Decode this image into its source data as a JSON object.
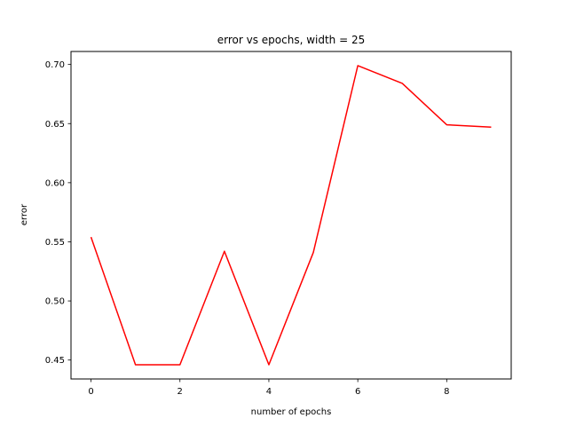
{
  "chart_data": {
    "type": "line",
    "title": "error vs epochs, width = 25",
    "xlabel": "number of epochs",
    "ylabel": "error",
    "xlim": [
      -0.45,
      9.45
    ],
    "ylim": [
      0.434,
      0.711
    ],
    "xticks": [
      0,
      2,
      4,
      6,
      8
    ],
    "xtick_labels": [
      "0",
      "2",
      "4",
      "6",
      "8"
    ],
    "yticks": [
      0.45,
      0.5,
      0.55,
      0.6,
      0.65,
      0.7
    ],
    "ytick_labels": [
      "0.45",
      "0.50",
      "0.55",
      "0.60",
      "0.65",
      "0.70"
    ],
    "grid": false,
    "series": [
      {
        "color": "#ff0000",
        "x": [
          0,
          1,
          2,
          3,
          4,
          5,
          6,
          7,
          8,
          9
        ],
        "values": [
          0.554,
          0.446,
          0.446,
          0.542,
          0.446,
          0.541,
          0.699,
          0.684,
          0.649,
          0.647
        ]
      }
    ]
  }
}
